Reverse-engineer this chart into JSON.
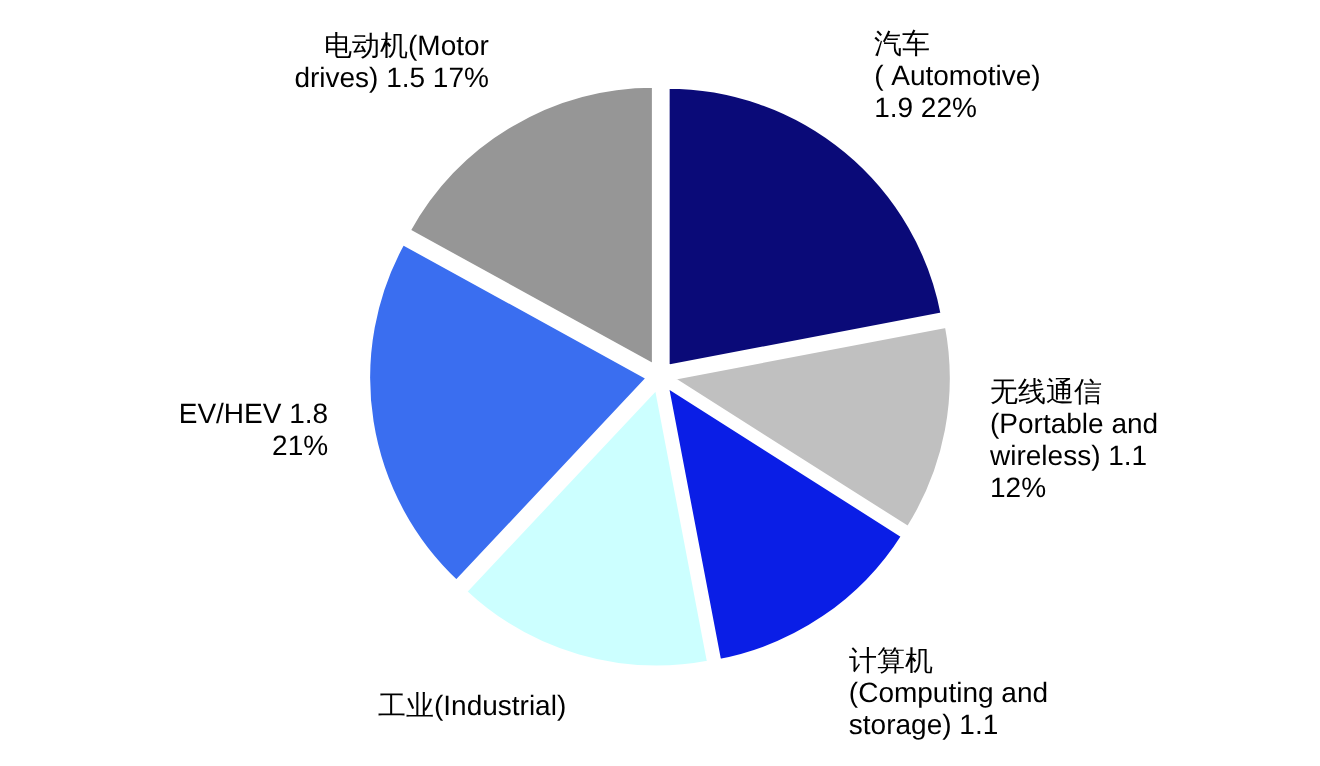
{
  "chart_data": {
    "type": "pie",
    "categories": [
      "汽车\n( Automotive)\n1.9  22%",
      "无线通信\n(Portable and\nwireless) 1.1\n12%",
      "计算机\n(Computing and\nstorage) 1.1",
      "工业(Industrial)",
      "EV/HEV 1.8\n21%",
      "电动机(Motor\ndrives) 1.5  17%"
    ],
    "values": [
      22,
      12,
      13,
      15,
      21,
      17
    ],
    "colors": [
      "#0a0a78",
      "#c0c0c0",
      "#0a1ee6",
      "#ccffff",
      "#3a6ef0",
      "#969696"
    ]
  }
}
